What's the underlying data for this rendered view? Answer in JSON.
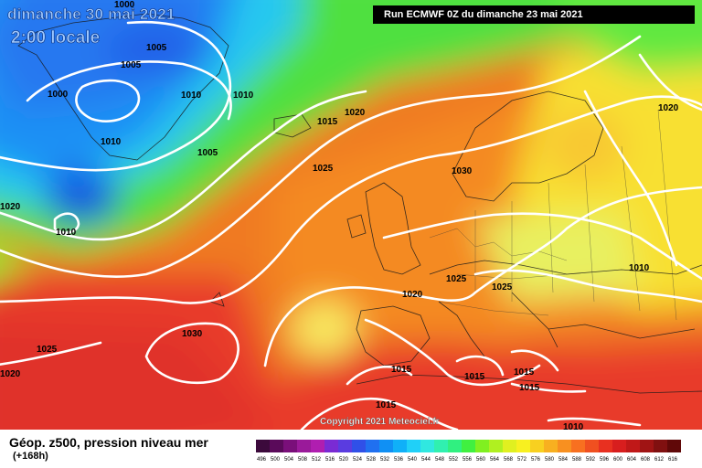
{
  "map": {
    "date_title": "dimanche 30 mai 2021",
    "time_title": "2:00 locale",
    "run_info": "Run ECMWF 0Z du dimanche 23 mai 2021",
    "copyright": "Copyright 2021 Meteociel.fr",
    "variable_title": "Géop. z500, pression niveau mer",
    "lead_time": "(+168h)",
    "pressure_labels": [
      "1000",
      "1005",
      "1005",
      "1000",
      "1010",
      "1010",
      "1010",
      "1005",
      "1010",
      "1020",
      "1015",
      "1020",
      "1025",
      "1030",
      "1025",
      "1025",
      "1020",
      "1030",
      "1025",
      "1020",
      "1015",
      "1015",
      "1015",
      "1015",
      "1015",
      "1010",
      "1010",
      "1020"
    ],
    "scale_values": [
      "496",
      "500",
      "504",
      "508",
      "512",
      "516",
      "520",
      "524",
      "528",
      "532",
      "536",
      "540",
      "544",
      "548",
      "552",
      "556",
      "560",
      "564",
      "568",
      "572",
      "576",
      "580",
      "584",
      "588",
      "592",
      "596",
      "600",
      "604",
      "608",
      "612",
      "616"
    ],
    "scale_colors": [
      "#3c0a3c",
      "#5a0a5a",
      "#7a0f7a",
      "#9a1a9a",
      "#b01eb0",
      "#7a2bd4",
      "#5a3ce0",
      "#3050e8",
      "#2070f0",
      "#1090f4",
      "#10b0f8",
      "#20d0f8",
      "#30e8e0",
      "#30f0b0",
      "#30f080",
      "#40f040",
      "#80f020",
      "#b0f020",
      "#e0f020",
      "#f8f020",
      "#f8d020",
      "#f8b020",
      "#f89020",
      "#f87020",
      "#f05020",
      "#e83020",
      "#d81e1e",
      "#c01818",
      "#a01414",
      "#801010",
      "#600808"
    ]
  }
}
